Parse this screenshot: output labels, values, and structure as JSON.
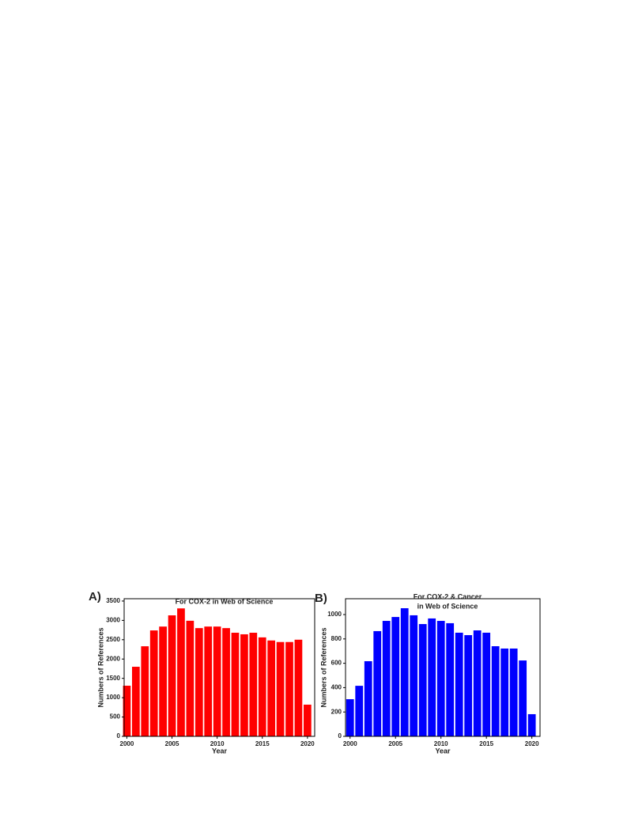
{
  "chart_data": [
    {
      "type": "bar",
      "panel_label": "A)",
      "title": [
        "For COX-2 in Web of Science"
      ],
      "x_label": "Year",
      "y_label": "Numbers of References",
      "color": "#ff0000",
      "x": [
        2000,
        2001,
        2002,
        2003,
        2004,
        2005,
        2006,
        2007,
        2008,
        2009,
        2010,
        2011,
        2012,
        2013,
        2014,
        2015,
        2016,
        2017,
        2018,
        2019,
        2020
      ],
      "values": [
        1310,
        1800,
        2330,
        2740,
        2840,
        3130,
        3310,
        2990,
        2800,
        2840,
        2840,
        2800,
        2680,
        2640,
        2680,
        2560,
        2480,
        2440,
        2440,
        2500,
        820
      ],
      "xlim": [
        1999.7,
        2020.8
      ],
      "xticks": [
        2000,
        2005,
        2010,
        2015,
        2020
      ],
      "ylim": [
        0,
        3560
      ],
      "yticks": [
        0,
        500,
        1000,
        1500,
        2000,
        2500,
        3000,
        3500
      ]
    },
    {
      "type": "bar",
      "panel_label": "B)",
      "title": [
        "For COX-2 & Cancer",
        "in Web of Science"
      ],
      "x_label": "Year",
      "y_label": "Numbers of References",
      "color": "#0000ff",
      "x": [
        2000,
        2001,
        2002,
        2003,
        2004,
        2005,
        2006,
        2007,
        2008,
        2009,
        2010,
        2011,
        2012,
        2013,
        2014,
        2015,
        2016,
        2017,
        2018,
        2019,
        2020
      ],
      "values": [
        305,
        415,
        617,
        864,
        948,
        980,
        1052,
        994,
        922,
        968,
        948,
        929,
        851,
        831,
        870,
        851,
        740,
        721,
        721,
        623,
        182
      ],
      "xlim": [
        1999.5,
        2020.9
      ],
      "xticks": [
        2000,
        2005,
        2010,
        2015,
        2020
      ],
      "ylim": [
        0,
        1130
      ],
      "yticks": [
        0,
        200,
        400,
        600,
        800,
        1000
      ]
    }
  ]
}
